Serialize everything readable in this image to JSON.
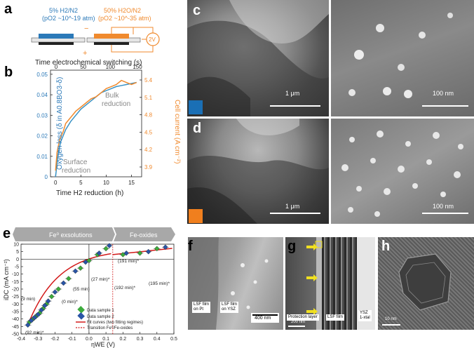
{
  "panels": {
    "a": "a",
    "b": "b",
    "c": "c",
    "d": "d",
    "e": "e",
    "f": "f",
    "g": "g",
    "h": "h"
  },
  "panel_a": {
    "left_label_line1": "5% H2/N2",
    "left_label_line2": "(pO2 ~10^-19 atm)",
    "right_label_line1": "50% H2O/N2",
    "right_label_line2": "(pO2 ~10^-35 atm)",
    "minus": "−",
    "plus": "+",
    "voltage": "2V",
    "colors": {
      "blue": "#2b79b8",
      "orange": "#f08a2e"
    }
  },
  "panel_b": {
    "top_axis_title": "Time electrochemical switching (s)",
    "top_ticks": [
      "0",
      "50",
      "100",
      "150"
    ],
    "bottom_axis_title": "Time H2 reduction (h)",
    "bottom_ticks": [
      "0",
      "5",
      "10",
      "15"
    ],
    "left_axis_title": "Oxygen loss (δ in A0.8BO3-δ)",
    "left_ticks": [
      "0",
      "0.01",
      "0.02",
      "0.03",
      "0.04",
      "0.05"
    ],
    "right_axis_title": "Cell current (A cm⁻²)",
    "right_ticks": [
      "3.9",
      "4.2",
      "4.5",
      "4.8",
      "5.1",
      "5.4"
    ],
    "annotation_bulk_1": "Bulk",
    "annotation_bulk_2": "reduction",
    "annotation_surface_1": "Surface",
    "annotation_surface_2": "reduction"
  },
  "panel_c": {
    "scale_left": "1 μm",
    "scale_right": "100 nm",
    "marker_color": "#1a6fb5"
  },
  "panel_d": {
    "scale_left": "1 μm",
    "scale_right": "100 nm",
    "marker_color": "#f07f1e"
  },
  "panel_e": {
    "banner_left": "Fe⁰ exsolutions",
    "banner_right": "Fe-oxides",
    "y_axis_title": "iDC (mA cm⁻²)",
    "x_axis_title": "ηWE (V)",
    "x_ticks": [
      "-0.4",
      "-0.3",
      "-0.2",
      "-0.1",
      "0.0",
      "0.1",
      "0.2",
      "0.3",
      "0.4",
      "0.5"
    ],
    "y_ticks": [
      "10",
      "5",
      "0",
      "-5",
      "-10",
      "-15",
      "-20",
      "-25",
      "-30",
      "-35",
      "-40",
      "-45",
      "-50"
    ],
    "annotations": [
      "(191 min)*",
      "(195 min)*",
      "(192 min)*",
      "(27 min)*",
      "(55 min)",
      "(0 min)*",
      "(9 min)",
      "(92 min)*"
    ],
    "legend": [
      "Data sample 1",
      "Data sample 2",
      "Fit curves (two fitting regimes)",
      "Transition Fe⁰/Fe-oxides"
    ]
  },
  "panel_f": {
    "tag_pt_1": "LSF film",
    "tag_pt_2": "on Pt",
    "tag_ysz_1": "LSF film",
    "tag_ysz_2": "on YSZ",
    "scale": "400 nm"
  },
  "panel_g": {
    "tag_protection": "Protection layer",
    "tag_lsf": "LSF film",
    "tag_ysz_1": "YSZ",
    "tag_ysz_2": "1-xtal",
    "scale": "200 nm"
  },
  "panel_h": {
    "scale": "10 nm"
  },
  "chart_data": [
    {
      "type": "line",
      "panel": "b",
      "xlabel": "Time H2 reduction (h)",
      "ylabel": "Oxygen loss (δ in A0.8BO3-δ)",
      "xlim": [
        -1,
        17
      ],
      "ylim": [
        0,
        0.052
      ],
      "series": [
        {
          "x": [
            0,
            0.5,
            1,
            2,
            3,
            4,
            5,
            6,
            7,
            8,
            9,
            10,
            11,
            12,
            13,
            14,
            15,
            16
          ],
          "values": [
            0.0,
            0.011,
            0.017,
            0.023,
            0.027,
            0.03,
            0.033,
            0.035,
            0.037,
            0.039,
            0.041,
            0.042,
            0.043,
            0.044,
            0.0445,
            0.045,
            0.0455,
            0.046
          ]
        },
        {
          "x": [
            0,
            0.3,
            0.8,
            1.5,
            2,
            3,
            4,
            5,
            6,
            7,
            8,
            9,
            10,
            11,
            12,
            13,
            14,
            15,
            16
          ],
          "values": [
            0.003,
            0.012,
            0.018,
            0.022,
            0.026,
            0.029,
            0.032,
            0.034,
            0.036,
            0.038,
            0.039,
            0.041,
            0.043,
            0.044,
            0.045,
            0.047,
            0.046,
            0.045,
            0.046
          ]
        }
      ]
    },
    {
      "type": "scatter",
      "panel": "e",
      "xlabel": "ηWE (V)",
      "ylabel": "iDC (mA cm⁻²)",
      "xlim": [
        -0.4,
        0.5
      ],
      "ylim": [
        -50,
        10
      ],
      "series": [
        {
          "name": "Data sample 1",
          "x": [
            -0.35,
            -0.33,
            -0.31,
            -0.29,
            -0.27,
            -0.25,
            -0.22,
            -0.18,
            -0.12,
            -0.05,
            0.0,
            0.05,
            0.1,
            0.2,
            0.3,
            0.4
          ],
          "values": [
            -42,
            -40,
            -38,
            -36,
            -33,
            -30,
            -25,
            -20,
            -13,
            -6,
            -1,
            3,
            7,
            3,
            4,
            7
          ]
        },
        {
          "name": "Data sample 2",
          "x": [
            -0.36,
            -0.34,
            -0.32,
            -0.3,
            -0.28,
            -0.26,
            -0.24,
            -0.2,
            -0.15,
            -0.08,
            -0.02,
            0.06,
            0.12,
            0.22,
            0.35,
            0.45
          ],
          "values": [
            -44,
            -41,
            -39,
            -37,
            -34,
            -31,
            -28,
            -22,
            -16,
            -8,
            -2,
            4,
            9,
            4,
            5,
            8
          ]
        }
      ]
    }
  ]
}
